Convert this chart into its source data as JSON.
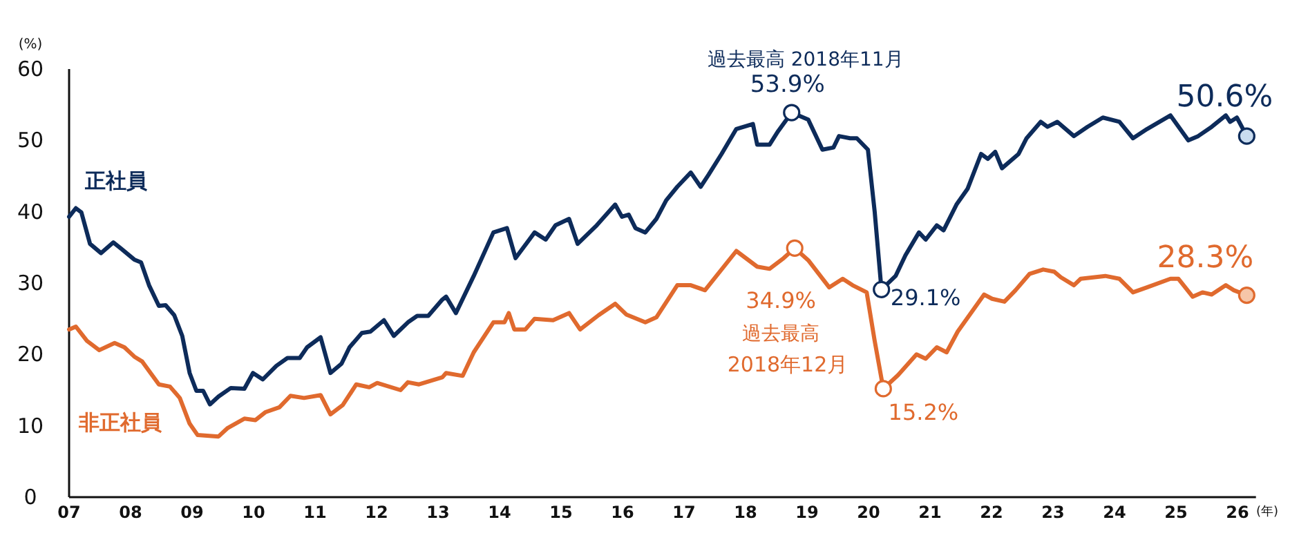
{
  "chart_data": {
    "type": "line",
    "xlabel": "(年)",
    "ylabel": "(%)",
    "xlim": [
      2007,
      2026.3
    ],
    "ylim": [
      0,
      60
    ],
    "xticks": [
      {
        "value": 2007,
        "label": "07"
      },
      {
        "value": 2008,
        "label": "08"
      },
      {
        "value": 2009,
        "label": "09"
      },
      {
        "value": 2010,
        "label": "10"
      },
      {
        "value": 2011,
        "label": "11"
      },
      {
        "value": 2012,
        "label": "12"
      },
      {
        "value": 2013,
        "label": "13"
      },
      {
        "value": 2014,
        "label": "14"
      },
      {
        "value": 2015,
        "label": "15"
      },
      {
        "value": 2016,
        "label": "16"
      },
      {
        "value": 2017,
        "label": "17"
      },
      {
        "value": 2018,
        "label": "18"
      },
      {
        "value": 2019,
        "label": "19"
      },
      {
        "value": 2020,
        "label": "20"
      },
      {
        "value": 2021,
        "label": "21"
      },
      {
        "value": 2022,
        "label": "22"
      },
      {
        "value": 2023,
        "label": "23"
      },
      {
        "value": 2024,
        "label": "24"
      },
      {
        "value": 2025,
        "label": "25"
      },
      {
        "value": 2026,
        "label": "26"
      }
    ],
    "yticks": [
      0,
      10,
      20,
      30,
      40,
      50,
      60
    ],
    "grid": false,
    "legend": false,
    "marker": "none",
    "line_style": "solid",
    "series": [
      {
        "name": "正社員",
        "color": "#0d2b5a",
        "x": [
          2007.0,
          2007.11,
          2007.2,
          2007.34,
          2007.52,
          2007.72,
          2007.85,
          2008.06,
          2008.17,
          2008.3,
          2008.46,
          2008.57,
          2008.71,
          2008.84,
          2008.96,
          2009.07,
          2009.18,
          2009.29,
          2009.43,
          2009.63,
          2009.85,
          2009.99,
          2010.15,
          2010.37,
          2010.55,
          2010.75,
          2010.87,
          2011.09,
          2011.25,
          2011.43,
          2011.56,
          2011.76,
          2011.9,
          2012.12,
          2012.28,
          2012.51,
          2012.66,
          2012.84,
          2013.07,
          2013.13,
          2013.29,
          2013.58,
          2013.9,
          2014.12,
          2014.26,
          2014.57,
          2014.75,
          2014.91,
          2015.13,
          2015.27,
          2015.58,
          2015.88,
          2015.99,
          2016.1,
          2016.21,
          2016.37,
          2016.55,
          2016.71,
          2016.89,
          2017.11,
          2017.27,
          2017.4,
          2017.61,
          2017.85,
          2018.12,
          2018.19,
          2018.39,
          2018.53,
          2018.75,
          2019.02,
          2019.25,
          2019.43,
          2019.52,
          2019.7,
          2019.81,
          2019.99,
          2020.1,
          2020.21,
          2020.44,
          2020.6,
          2020.82,
          2020.93,
          2021.11,
          2021.22,
          2021.43,
          2021.61,
          2021.83,
          2021.94,
          2022.06,
          2022.17,
          2022.44,
          2022.57,
          2022.8,
          2022.91,
          2023.07,
          2023.34,
          2023.56,
          2023.81,
          2024.08,
          2024.3,
          2024.53,
          2024.91,
          2025.2,
          2025.36,
          2025.58,
          2025.81,
          2025.88,
          2025.99,
          2026.15
        ],
        "values": [
          39.3,
          40.5,
          39.9,
          35.5,
          34.2,
          35.7,
          34.8,
          33.3,
          32.9,
          29.7,
          26.8,
          26.9,
          25.5,
          22.6,
          17.4,
          14.9,
          14.9,
          13.0,
          14.1,
          15.3,
          15.2,
          17.4,
          16.5,
          18.4,
          19.5,
          19.5,
          21.0,
          22.4,
          17.4,
          18.7,
          21.0,
          23.0,
          23.2,
          24.8,
          22.6,
          24.5,
          25.4,
          25.4,
          27.7,
          28.1,
          25.8,
          31.0,
          37.1,
          37.7,
          33.5,
          37.1,
          36.1,
          38.1,
          39.0,
          35.5,
          38.1,
          41.0,
          39.3,
          39.6,
          37.7,
          37.1,
          39.0,
          41.6,
          43.5,
          45.5,
          43.5,
          45.2,
          48.1,
          51.6,
          52.3,
          49.4,
          49.4,
          51.3,
          53.9,
          52.9,
          48.7,
          49.0,
          50.6,
          50.3,
          50.3,
          48.7,
          40.0,
          29.1,
          31.0,
          33.9,
          37.1,
          36.1,
          38.1,
          37.4,
          41.0,
          43.2,
          48.1,
          47.4,
          48.4,
          46.1,
          48.1,
          50.3,
          52.6,
          51.9,
          52.6,
          50.6,
          51.9,
          53.2,
          52.6,
          50.3,
          51.6,
          53.5,
          50.0,
          50.6,
          51.9,
          53.5,
          52.6,
          53.2,
          50.6
        ]
      },
      {
        "name": "非正社員",
        "color": "#e06a2e",
        "x": [
          2007.0,
          2007.11,
          2007.29,
          2007.49,
          2007.74,
          2007.9,
          2008.06,
          2008.19,
          2008.46,
          2008.64,
          2008.8,
          2008.96,
          2009.09,
          2009.43,
          2009.58,
          2009.85,
          2010.03,
          2010.19,
          2010.42,
          2010.6,
          2010.82,
          2011.09,
          2011.25,
          2011.45,
          2011.67,
          2011.88,
          2012.01,
          2012.39,
          2012.51,
          2012.69,
          2013.07,
          2013.13,
          2013.4,
          2013.58,
          2013.9,
          2014.08,
          2014.15,
          2014.24,
          2014.42,
          2014.57,
          2014.87,
          2015.13,
          2015.31,
          2015.61,
          2015.88,
          2016.06,
          2016.37,
          2016.55,
          2016.89,
          2017.11,
          2017.34,
          2017.85,
          2018.19,
          2018.39,
          2018.62,
          2018.8,
          2019.02,
          2019.36,
          2019.58,
          2019.74,
          2019.97,
          2020.1,
          2020.24,
          2020.48,
          2020.78,
          2020.93,
          2021.11,
          2021.27,
          2021.45,
          2021.88,
          2022.01,
          2022.21,
          2022.39,
          2022.62,
          2022.84,
          2023.02,
          2023.13,
          2023.34,
          2023.45,
          2023.85,
          2024.08,
          2024.3,
          2024.53,
          2024.91,
          2025.04,
          2025.27,
          2025.43,
          2025.58,
          2025.81,
          2025.94,
          2026.15
        ],
        "values": [
          23.5,
          23.9,
          21.9,
          20.6,
          21.6,
          21.0,
          19.7,
          19.0,
          15.8,
          15.5,
          13.9,
          10.3,
          8.7,
          8.5,
          9.7,
          11.0,
          10.8,
          11.9,
          12.6,
          14.2,
          13.9,
          14.3,
          11.6,
          12.9,
          15.8,
          15.4,
          16.0,
          15.0,
          16.1,
          15.8,
          16.8,
          17.4,
          17.0,
          20.3,
          24.5,
          24.5,
          25.8,
          23.5,
          23.5,
          25.0,
          24.8,
          25.8,
          23.5,
          25.5,
          27.1,
          25.6,
          24.5,
          25.2,
          29.7,
          29.7,
          29.0,
          34.5,
          32.3,
          32.0,
          33.5,
          34.9,
          33.2,
          29.4,
          30.6,
          29.7,
          28.7,
          21.9,
          15.2,
          17.1,
          20.0,
          19.4,
          21.0,
          20.3,
          23.2,
          28.4,
          27.8,
          27.4,
          29.0,
          31.3,
          31.9,
          31.6,
          30.8,
          29.7,
          30.6,
          31.0,
          30.6,
          28.7,
          29.4,
          30.6,
          30.6,
          28.1,
          28.7,
          28.4,
          29.7,
          29.0,
          28.3
        ]
      }
    ],
    "annotations": [
      {
        "text": "過去最高 2018年11月",
        "x": 2018.75,
        "y": 53.9
      },
      {
        "text": "53.9%",
        "x": 2018.75,
        "y": 53.9
      },
      {
        "text": "34.9%",
        "x": 2018.8,
        "y": 34.9
      },
      "過去最高",
      "2018年12月",
      {
        "text": "29.1%",
        "x": 2020.21,
        "y": 29.1
      },
      {
        "text": "15.2%",
        "x": 2020.24,
        "y": 15.2
      },
      {
        "text": "50.6%",
        "x": 2026.15,
        "y": 50.6
      },
      {
        "text": "28.3%",
        "x": 2026.15,
        "y": 28.3
      }
    ]
  }
}
